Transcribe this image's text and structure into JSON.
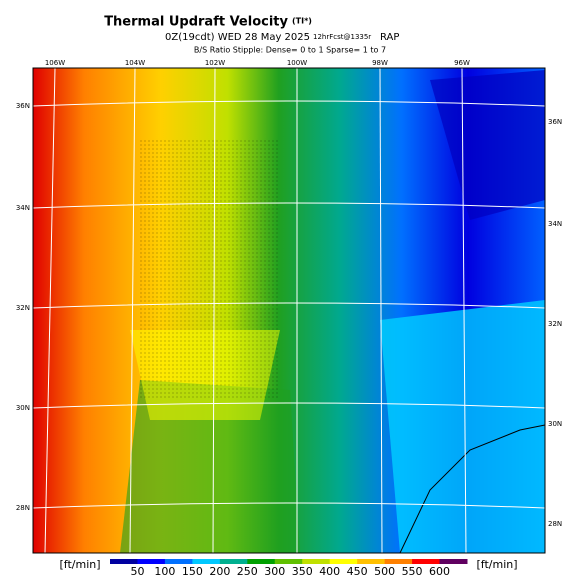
{
  "header": {
    "title": "Thermal Updraft Velocity",
    "title_unit": "(TI*)",
    "run": "0Z(19cdt) WED 28 May 2025",
    "forecast": "12hrFcst@1335r",
    "model": "RAP",
    "stipple_note": "B/S Ratio Stipple: Dense= 0 to 1  Sparse= 1 to 7"
  },
  "map": {
    "lon_labels": [
      "106W",
      "104W",
      "102W",
      "100W",
      "98W",
      "96W"
    ],
    "lat_labels_left": [
      "36N",
      "34N",
      "32N",
      "30N",
      "28N"
    ],
    "lat_labels_right": [
      "36N",
      "34N",
      "32N",
      "30N",
      "28N"
    ]
  },
  "colorbar": {
    "unit_left": "[ft/min]",
    "unit_right": "[ft/min]",
    "ticks": [
      50,
      100,
      150,
      200,
      250,
      300,
      350,
      400,
      450,
      500,
      550,
      600
    ],
    "colors": [
      "#0000a0",
      "#0000ff",
      "#0070ff",
      "#00c8ff",
      "#00b090",
      "#00a000",
      "#60c000",
      "#c0e000",
      "#ffff00",
      "#ffc000",
      "#ff8000",
      "#ff0000",
      "#600060"
    ]
  }
}
